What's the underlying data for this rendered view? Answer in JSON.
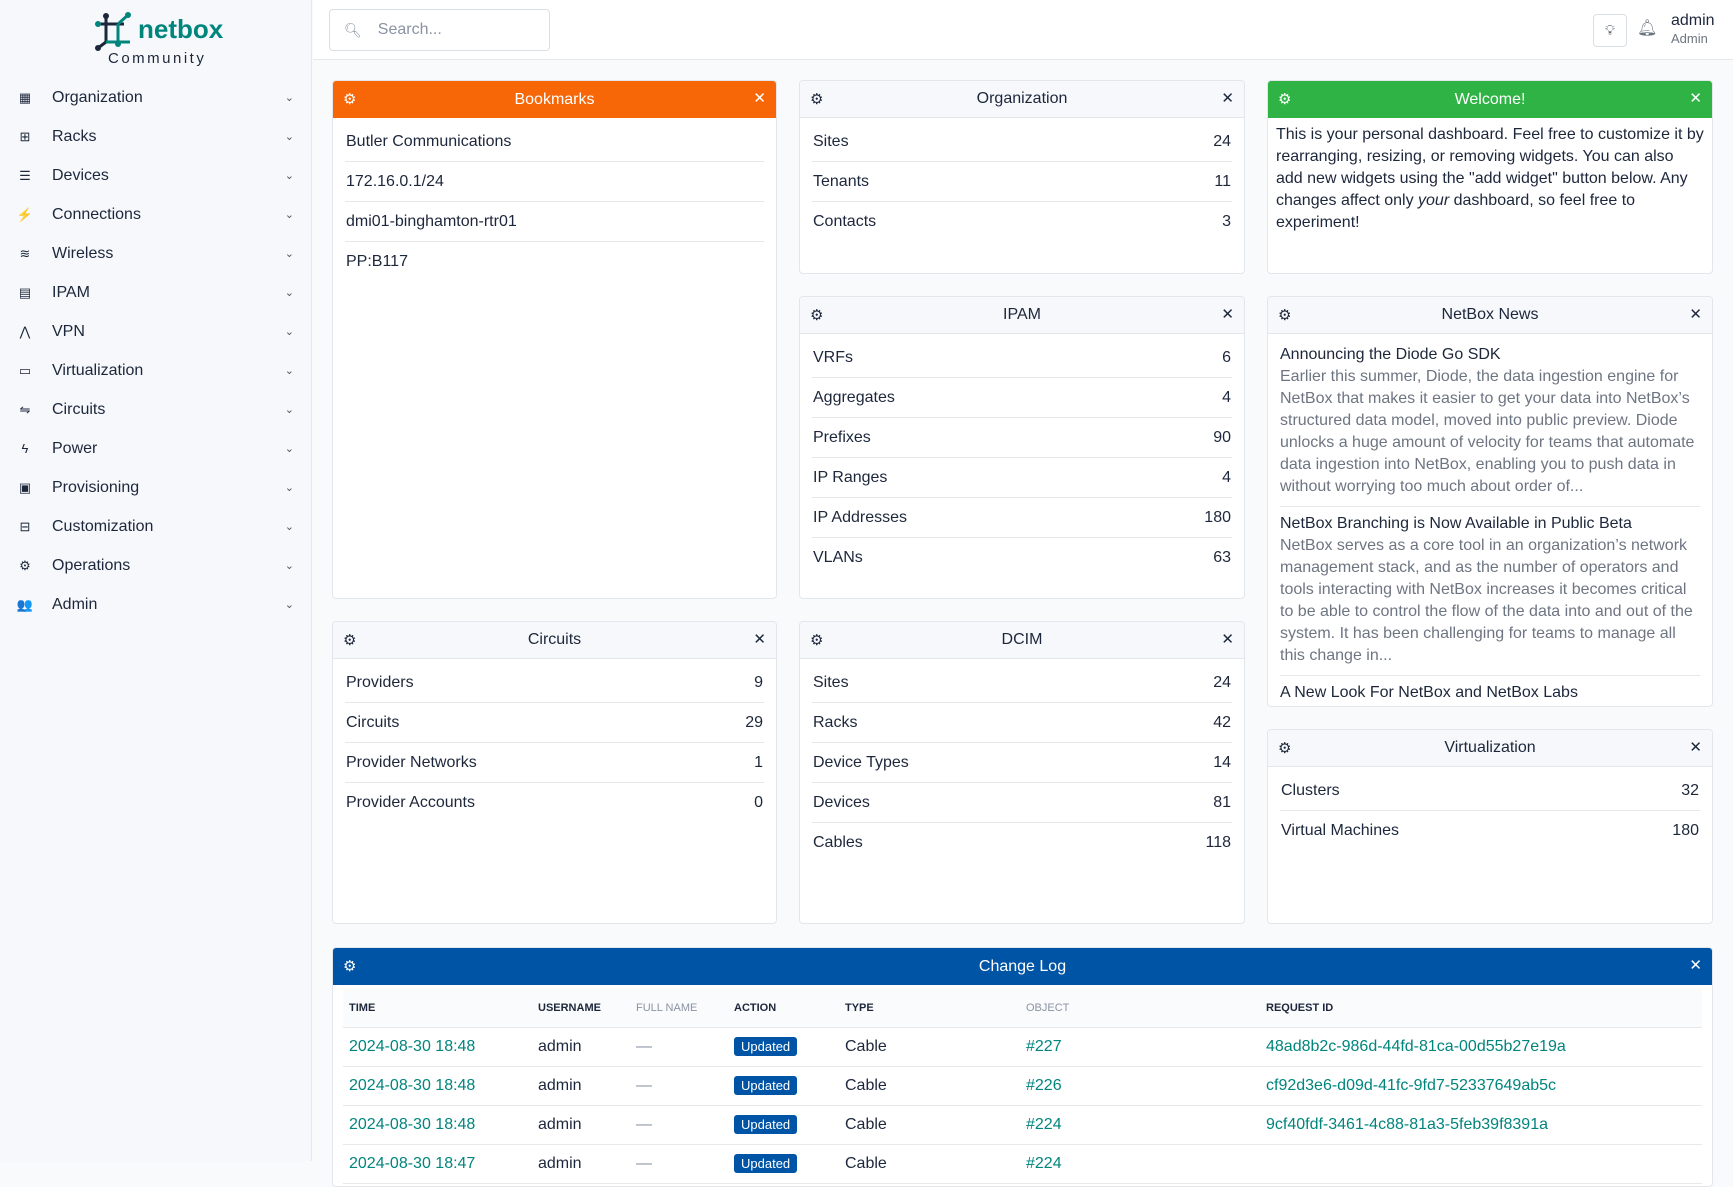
{
  "brand": {
    "name": "netbox",
    "edition": "Community",
    "color": "#00857d"
  },
  "sidebar": {
    "items": [
      {
        "label": "Organization",
        "icon": "building-icon",
        "glyph": "▦"
      },
      {
        "label": "Racks",
        "icon": "rack-icon",
        "glyph": "⊞"
      },
      {
        "label": "Devices",
        "icon": "server-icon",
        "glyph": "☰"
      },
      {
        "label": "Connections",
        "icon": "plug-icon",
        "glyph": "⚡"
      },
      {
        "label": "Wireless",
        "icon": "wifi-icon",
        "glyph": "≋"
      },
      {
        "label": "IPAM",
        "icon": "ipam-icon",
        "glyph": "▤"
      },
      {
        "label": "VPN",
        "icon": "vpn-icon",
        "glyph": "⋀"
      },
      {
        "label": "Virtualization",
        "icon": "monitor-icon",
        "glyph": "▭"
      },
      {
        "label": "Circuits",
        "icon": "circuit-icon",
        "glyph": "⇋"
      },
      {
        "label": "Power",
        "icon": "power-icon",
        "glyph": "ϟ"
      },
      {
        "label": "Provisioning",
        "icon": "file-icon",
        "glyph": "▣"
      },
      {
        "label": "Customization",
        "icon": "toolbox-icon",
        "glyph": "⊟"
      },
      {
        "label": "Operations",
        "icon": "cogs-icon",
        "glyph": "⚙"
      },
      {
        "label": "Admin",
        "icon": "users-icon",
        "glyph": "👥"
      }
    ]
  },
  "header": {
    "search_placeholder": "Search...",
    "user": "admin",
    "role": "Admin"
  },
  "widgets": {
    "bookmarks": {
      "title": "Bookmarks",
      "color": "#f76707",
      "items": [
        "Butler Communications",
        "172.16.0.1/24",
        "dmi01-binghamton-rtr01",
        "PP:B117"
      ]
    },
    "organization": {
      "title": "Organization",
      "rows": [
        {
          "k": "Sites",
          "v": "24"
        },
        {
          "k": "Tenants",
          "v": "11"
        },
        {
          "k": "Contacts",
          "v": "3"
        }
      ]
    },
    "welcome": {
      "title": "Welcome!",
      "color": "#2fb344",
      "text_before": "This is your personal dashboard. Feel free to customize it by rearranging, resizing, or removing widgets. You can also add new widgets using the \"add widget\" button below. Any changes affect only ",
      "text_em": "your",
      "text_after": " dashboard, so feel free to experiment!"
    },
    "ipam": {
      "title": "IPAM",
      "rows": [
        {
          "k": "VRFs",
          "v": "6"
        },
        {
          "k": "Aggregates",
          "v": "4"
        },
        {
          "k": "Prefixes",
          "v": "90"
        },
        {
          "k": "IP Ranges",
          "v": "4"
        },
        {
          "k": "IP Addresses",
          "v": "180"
        },
        {
          "k": "VLANs",
          "v": "63"
        }
      ]
    },
    "news": {
      "title": "NetBox News",
      "items": [
        {
          "title": "Announcing the Diode Go SDK",
          "desc": "Earlier this summer, Diode, the data ingestion engine for NetBox that makes it easier to get your data into NetBox’s structured data model, moved into public preview. Diode unlocks a huge amount of velocity for teams that automate data ingestion into NetBox, enabling you to push data in without worrying too much about order of..."
        },
        {
          "title": "NetBox Branching is Now Available in Public Beta",
          "desc": "NetBox serves as a core tool in an organization’s network management stack, and as the number of operators and tools interacting with NetBox increases it becomes critical to be able to control the flow of the data into and out of the system. It has been challenging for teams to manage all this change in..."
        },
        {
          "title": "A New Look For NetBox and NetBox Labs",
          "desc": ""
        }
      ]
    },
    "circuits": {
      "title": "Circuits",
      "rows": [
        {
          "k": "Providers",
          "v": "9"
        },
        {
          "k": "Circuits",
          "v": "29"
        },
        {
          "k": "Provider Networks",
          "v": "1"
        },
        {
          "k": "Provider Accounts",
          "v": "0"
        }
      ]
    },
    "dcim": {
      "title": "DCIM",
      "rows": [
        {
          "k": "Sites",
          "v": "24"
        },
        {
          "k": "Racks",
          "v": "42"
        },
        {
          "k": "Device Types",
          "v": "14"
        },
        {
          "k": "Devices",
          "v": "81"
        },
        {
          "k": "Cables",
          "v": "118"
        }
      ]
    },
    "virtualization": {
      "title": "Virtualization",
      "rows": [
        {
          "k": "Clusters",
          "v": "32"
        },
        {
          "k": "Virtual Machines",
          "v": "180"
        }
      ]
    },
    "changelog": {
      "title": "Change Log",
      "color": "#0054a6",
      "columns": [
        "TIME",
        "USERNAME",
        "FULL NAME",
        "ACTION",
        "TYPE",
        "OBJECT",
        "REQUEST ID"
      ],
      "rows": [
        {
          "time": "2024-08-30 18:48",
          "user": "admin",
          "full": "—",
          "action": "Updated",
          "type": "Cable",
          "object": "#227",
          "req": "48ad8b2c-986d-44fd-81ca-00d55b27e19a"
        },
        {
          "time": "2024-08-30 18:48",
          "user": "admin",
          "full": "—",
          "action": "Updated",
          "type": "Cable",
          "object": "#226",
          "req": "cf92d3e6-d09d-41fc-9fd7-52337649ab5c"
        },
        {
          "time": "2024-08-30 18:48",
          "user": "admin",
          "full": "—",
          "action": "Updated",
          "type": "Cable",
          "object": "#224",
          "req": "9cf40fdf-3461-4c88-81a3-5feb39f8391a"
        },
        {
          "time": "2024-08-30 18:47",
          "user": "admin",
          "full": "—",
          "action": "Updated",
          "type": "Cable",
          "object": "#224",
          "req": ""
        }
      ]
    }
  }
}
